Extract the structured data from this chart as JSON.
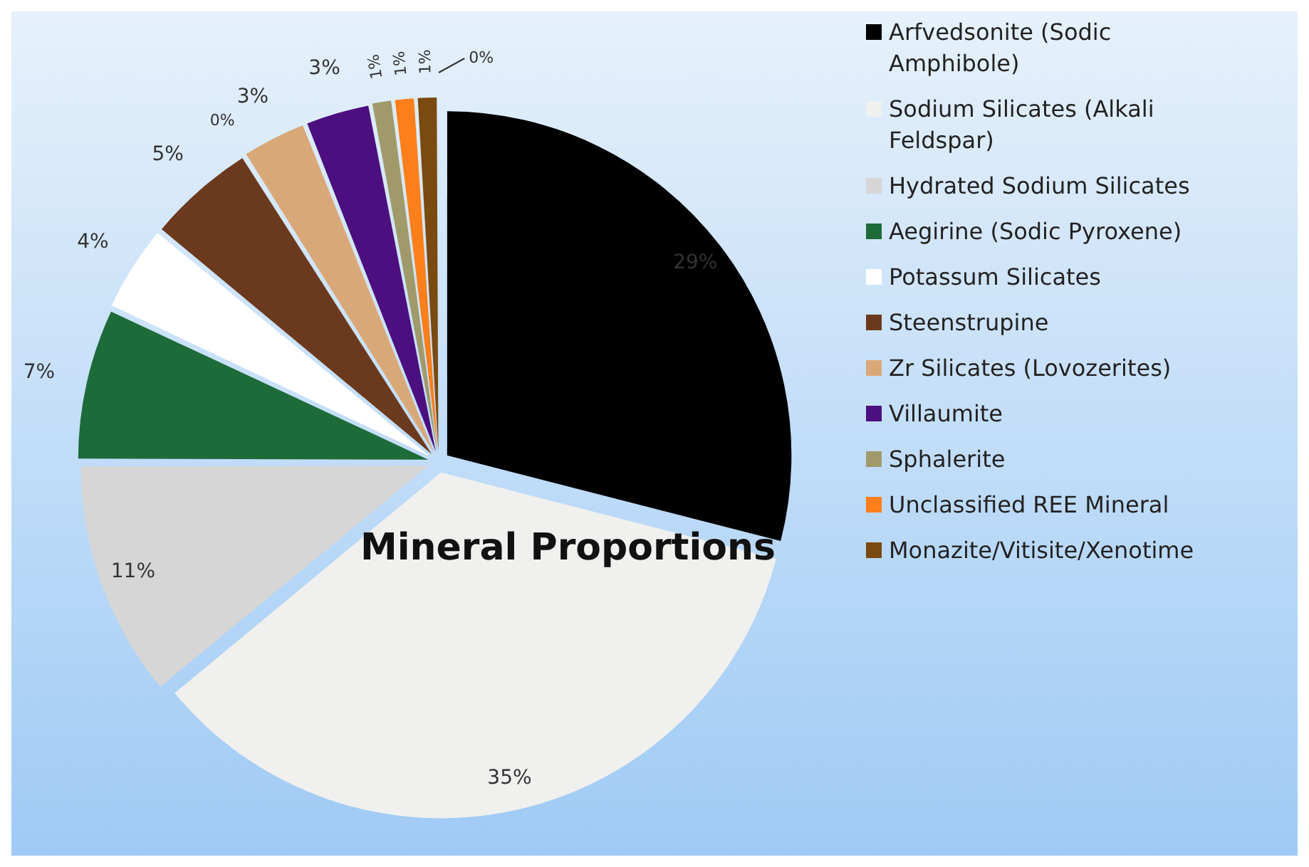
{
  "chart_data": {
    "type": "pie",
    "title": "Mineral Proportions",
    "categories": [
      "Arfvedsonite (Sodic Amphibole)",
      "Sodium Silicates (Alkali Feldspar)",
      "Hydrated Sodium Silicates",
      "Aegirine (Sodic Pyroxene)",
      "Potassum Silicates",
      "Steenstrupine",
      null,
      "Zr Silicates (Lovozerites)",
      "Villaumite",
      "Sphalerite",
      "Unclassified REE Mineral",
      "Monazite/Vitisite/Xenotime",
      null
    ],
    "values": [
      29,
      35,
      11,
      7,
      4,
      5,
      0,
      3,
      3,
      1,
      1,
      1,
      0
    ],
    "colors": [
      "#000000",
      "#f0f0ee",
      "#d6d6d6",
      "#1e6b3a",
      "#ffffff",
      "#6b3a1e",
      "#c8c8c8",
      "#d9a878",
      "#4b0f80",
      "#a09a6a",
      "#ff7f1a",
      "#7a4a10",
      "#808080"
    ],
    "value_labels": [
      "29%",
      "35%",
      "11%",
      "7%",
      "4%",
      "5%",
      "0%",
      "3%",
      "3%",
      "1%",
      "1%",
      "1%",
      "0%"
    ],
    "legend": "right"
  }
}
